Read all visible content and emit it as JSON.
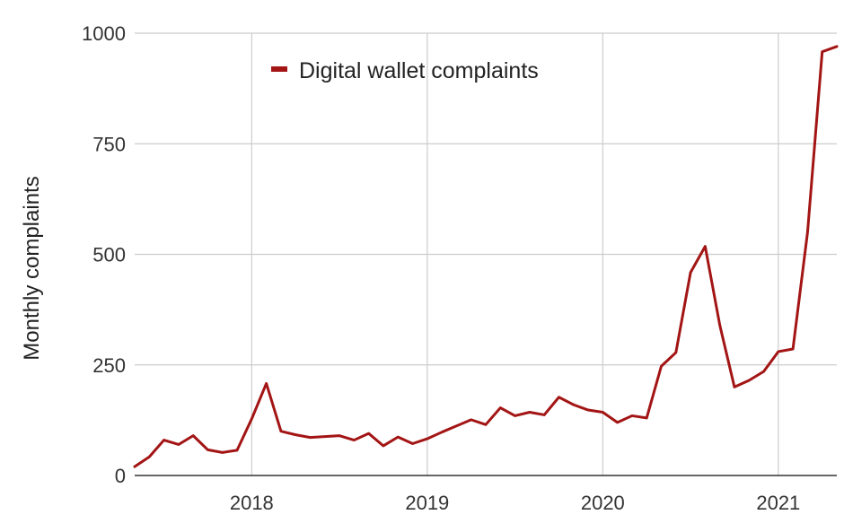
{
  "chart_data": {
    "type": "line",
    "ylabel": "Monthly complaints",
    "xlabel": "",
    "title": "",
    "ylim": [
      0,
      1000
    ],
    "yticks": [
      0,
      250,
      500,
      750,
      1000
    ],
    "ytick_labels": [
      "0",
      "250",
      "500",
      "750",
      "1000"
    ],
    "xlim": [
      "2017-05",
      "2021-05"
    ],
    "xticks": [
      "2018-01",
      "2019-01",
      "2020-01",
      "2021-01"
    ],
    "xtick_labels": [
      "2018",
      "2019",
      "2020",
      "2021"
    ],
    "grid": true,
    "legend_position": "top-left",
    "series": [
      {
        "name": "Digital wallet complaints",
        "color": "#a31515",
        "x": [
          "2017-05",
          "2017-06",
          "2017-07",
          "2017-08",
          "2017-09",
          "2017-10",
          "2017-11",
          "2017-12",
          "2018-01",
          "2018-02",
          "2018-03",
          "2018-04",
          "2018-05",
          "2018-06",
          "2018-07",
          "2018-08",
          "2018-09",
          "2018-10",
          "2018-11",
          "2018-12",
          "2019-01",
          "2019-02",
          "2019-03",
          "2019-04",
          "2019-05",
          "2019-06",
          "2019-07",
          "2019-08",
          "2019-09",
          "2019-10",
          "2019-11",
          "2019-12",
          "2020-01",
          "2020-02",
          "2020-03",
          "2020-04",
          "2020-05",
          "2020-06",
          "2020-07",
          "2020-08",
          "2020-09",
          "2020-10",
          "2020-11",
          "2020-12",
          "2021-01",
          "2021-02",
          "2021-03",
          "2021-04",
          "2021-05"
        ],
        "values": [
          20,
          42,
          80,
          70,
          90,
          58,
          52,
          57,
          128,
          208,
          100,
          92,
          86,
          88,
          90,
          80,
          95,
          67,
          87,
          72,
          83,
          98,
          112,
          126,
          115,
          153,
          135,
          143,
          137,
          177,
          160,
          148,
          143,
          120,
          135,
          130,
          247,
          278,
          459,
          518,
          340,
          200,
          215,
          235,
          280,
          286,
          550,
          958,
          970
        ]
      }
    ]
  }
}
